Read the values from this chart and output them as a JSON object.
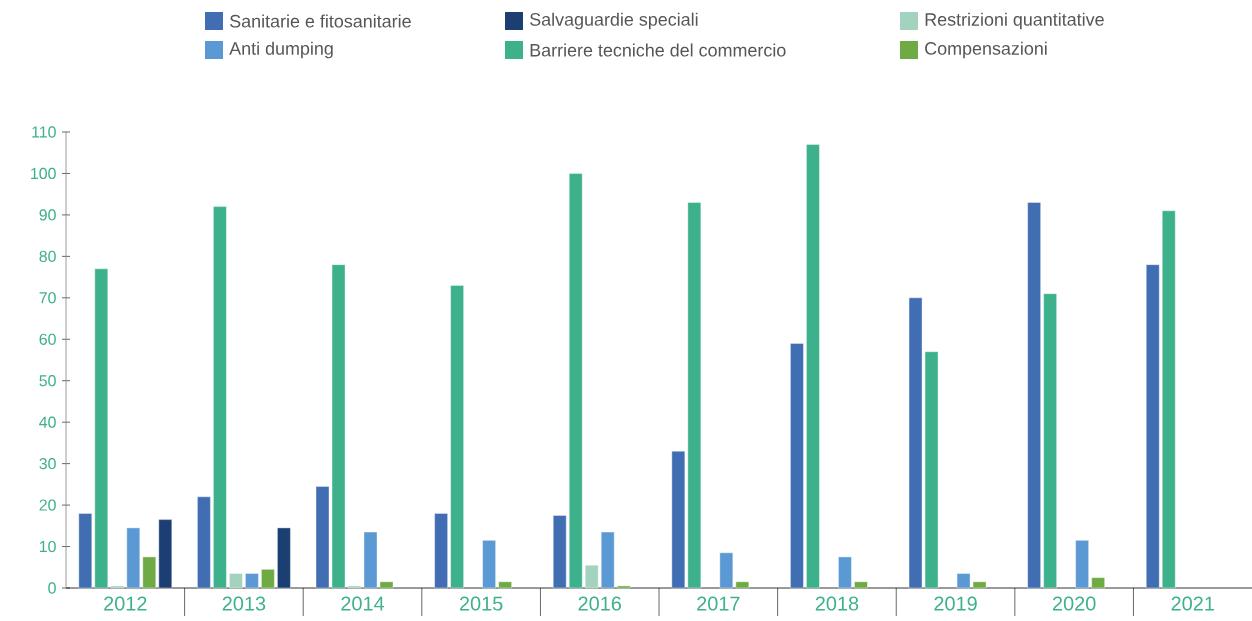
{
  "chart_data": {
    "type": "bar",
    "categories": [
      "2012",
      "2013",
      "2014",
      "2015",
      "2016",
      "2017",
      "2018",
      "2019",
      "2020",
      "2021"
    ],
    "series": [
      {
        "name": "Sanitarie e fitosanitarie",
        "color": "#416db3",
        "values": [
          18,
          22,
          24.5,
          18,
          17.5,
          33,
          59,
          70,
          93,
          78
        ]
      },
      {
        "name": "Barriere tecniche del commercio",
        "color": "#3db08c",
        "values": [
          77,
          92,
          78,
          73,
          100,
          93,
          107,
          57,
          71,
          91
        ]
      },
      {
        "name": "Restrizioni quantitative",
        "color": "#a3d2be",
        "values": [
          0.5,
          3.5,
          0.5,
          null,
          5.5,
          null,
          null,
          null,
          null,
          null
        ]
      },
      {
        "name": "Anti dumping",
        "color": "#5a99d4",
        "values": [
          14.5,
          3.5,
          13.5,
          11.5,
          13.5,
          8.5,
          7.5,
          3.5,
          11.5,
          null
        ]
      },
      {
        "name": "Compensazioni",
        "color": "#6fab44",
        "values": [
          7.5,
          4.5,
          1.5,
          1.5,
          0.5,
          1.5,
          1.5,
          1.5,
          2.5,
          null
        ]
      },
      {
        "name": "Salvaguardie speciali",
        "color": "#1c3f73",
        "values": [
          16.5,
          14.5,
          null,
          null,
          null,
          null,
          null,
          null,
          null,
          null
        ]
      }
    ],
    "ylim": [
      0,
      110
    ],
    "yticks": [
      0,
      10,
      20,
      30,
      40,
      50,
      60,
      70,
      80,
      90,
      100,
      110
    ],
    "legend": "top",
    "grid": false
  }
}
